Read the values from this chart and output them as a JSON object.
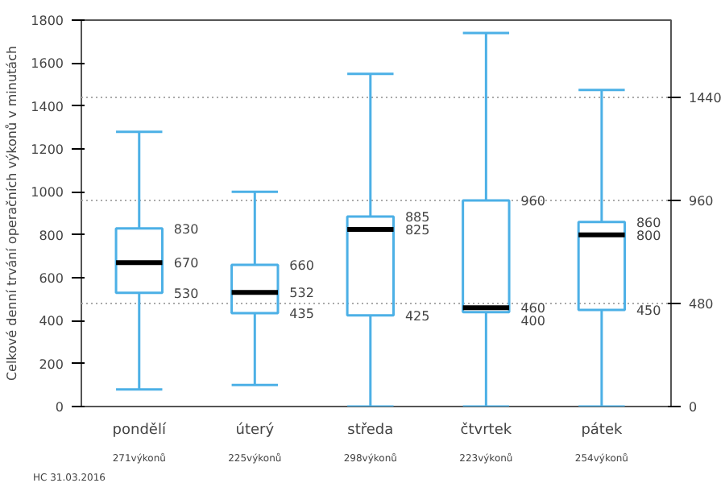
{
  "chart_data": {
    "type": "box",
    "ylabel": "Celkové denní trvání operačních výkonů v minutách",
    "categories": [
      "pondělí",
      "úterý",
      "středa",
      "čtvrtek",
      "pátek"
    ],
    "series": [
      {
        "color": "#4cb0e6",
        "boxes": [
          {
            "low": 80,
            "q1": 530,
            "median": 670,
            "q3": 830,
            "high": 1280
          },
          {
            "low": 100,
            "q1": 435,
            "median": 532,
            "q3": 660,
            "high": 1000
          },
          {
            "low": 0,
            "q1": 425,
            "median": 825,
            "q3": 885,
            "high": 1550
          },
          {
            "low": 0,
            "q1": 440,
            "median": 460,
            "q3": 960,
            "high": 1740
          },
          {
            "low": 0,
            "q1": 450,
            "median": 800,
            "q3": 860,
            "high": 1475
          }
        ]
      }
    ],
    "ylim": [
      0,
      1800
    ],
    "yticks": [
      0,
      200,
      400,
      600,
      800,
      1000,
      1200,
      1400,
      1600,
      1800
    ],
    "y2lim": [
      0,
      1800
    ],
    "y2ticks": [
      0,
      480,
      960,
      1440
    ],
    "grid": "y2",
    "annotations": [
      {
        "text": "830",
        "x": "pondělí",
        "y": 830
      },
      {
        "text": "670",
        "x": "pondělí",
        "y": 670
      },
      {
        "text": "530",
        "x": "pondělí",
        "y": 530
      },
      {
        "text": "660",
        "x": "úterý",
        "y": 660
      },
      {
        "text": "532",
        "x": "úterý",
        "y": 532
      },
      {
        "text": "435",
        "x": "úterý",
        "y": 435
      },
      {
        "text": "885",
        "x": "středa",
        "y": 885
      },
      {
        "text": "825",
        "x": "středa",
        "y": 825
      },
      {
        "text": "425",
        "x": "středa",
        "y": 425
      },
      {
        "text": "960",
        "x": "čtvrtek",
        "y": 960
      },
      {
        "text": "460",
        "x": "čtvrtek",
        "y": 460
      },
      {
        "text": "400",
        "x": "čtvrtek",
        "y": 400
      },
      {
        "text": "860",
        "x": "pátek",
        "y": 860
      },
      {
        "text": "800",
        "x": "pátek",
        "y": 800
      },
      {
        "text": "450",
        "x": "pátek",
        "y": 450
      },
      "271výkonů",
      "225výkonů",
      "298výkonů",
      "223výkonů",
      "254výkonů",
      "HC 31.03.2016"
    ]
  }
}
